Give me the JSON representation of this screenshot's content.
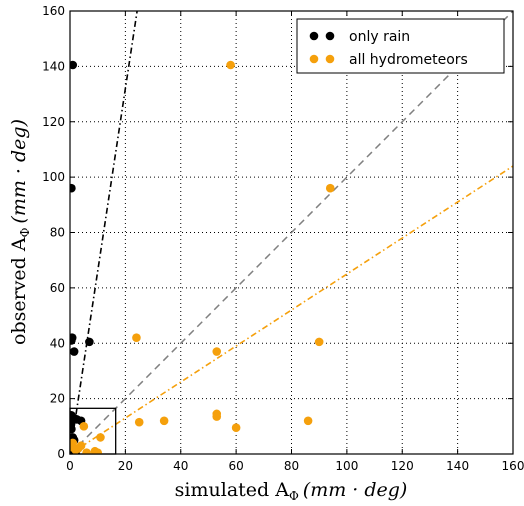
{
  "chart_data": {
    "type": "scatter",
    "title": "",
    "xlabel": "simulated A",
    "xlabel_sub": "Φ",
    "xlabel_unit": "(mm · deg)",
    "ylabel": "observed A",
    "ylabel_sub": "Φ",
    "ylabel_unit": "(mm · deg)",
    "xlim": [
      0,
      160
    ],
    "ylim": [
      0,
      160
    ],
    "xticks": [
      "0",
      "20",
      "40",
      "60",
      "80",
      "100",
      "120",
      "140",
      "160"
    ],
    "yticks": [
      "0",
      "20",
      "40",
      "60",
      "80",
      "100",
      "120",
      "140",
      "160"
    ],
    "grid": true,
    "legend_position": "top-right",
    "series": [
      {
        "name": "only rain",
        "color": "#000000",
        "fit_slope": 6.6,
        "x": [
          1,
          0.5,
          0.8,
          0.5,
          1.5,
          7,
          0.5,
          1.5,
          2.5,
          4,
          0.3,
          0.5,
          1,
          1.5,
          0.3,
          0.2,
          0.1,
          1,
          0.8,
          2
        ],
        "y": [
          140.5,
          96,
          42,
          41,
          37,
          40.5,
          14,
          13,
          12.5,
          12,
          11,
          9,
          6,
          5,
          4,
          3,
          2,
          1,
          0.5,
          0.3
        ]
      },
      {
        "name": "all hydrometeors",
        "color": "#f5a00c",
        "fit_slope": 0.65,
        "x": [
          58,
          94,
          24,
          53,
          90,
          53,
          53,
          34,
          25,
          86,
          60,
          11,
          5,
          9,
          10,
          3,
          1,
          2,
          4,
          0.5,
          6
        ],
        "y": [
          140.5,
          96,
          42,
          37,
          40.5,
          14.5,
          13.5,
          12,
          11.5,
          12,
          9.5,
          6,
          10,
          1,
          0.5,
          2,
          4,
          1.5,
          3,
          2.5,
          0.5
        ]
      }
    ],
    "reference_lines": [
      {
        "type": "identity",
        "slope": 1,
        "color": "#808080",
        "style": "dashed"
      }
    ],
    "inset_box": {
      "x": [
        0,
        16.5
      ],
      "y": [
        0,
        16.5
      ]
    }
  }
}
